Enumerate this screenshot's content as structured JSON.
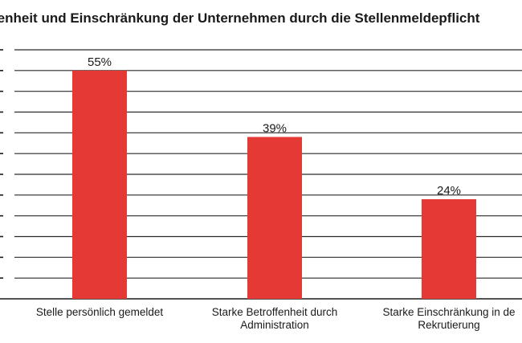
{
  "chart_data": {
    "type": "bar",
    "title": "fenheit und Einschränkung der Unternehmen durch die Stellenmeldepflicht",
    "categories": [
      [
        "Stelle persönlich gemeldet"
      ],
      [
        "Starke Betroffenheit durch",
        "Administration"
      ],
      [
        "Starke Einschränkung in de",
        "Rekrutierung"
      ]
    ],
    "values": [
      55,
      39,
      24
    ],
    "value_labels": [
      "55%",
      "39%",
      "24%"
    ],
    "ylim": [
      0,
      60
    ],
    "grid": true,
    "bar_color": "#e53935"
  }
}
